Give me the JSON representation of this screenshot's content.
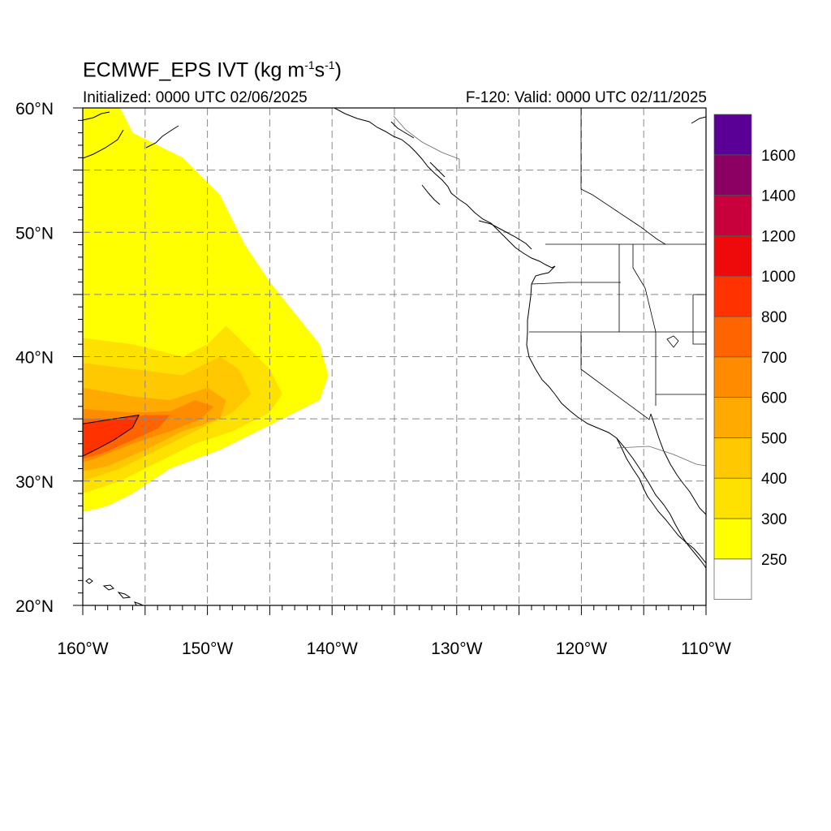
{
  "header": {
    "title_main": "ECMWF_EPS IVT (kg m",
    "title_exp1": "-1",
    "title_mid": "s",
    "title_exp2": "-1",
    "title_end": ")",
    "init_text": "Initialized: 0000 UTC 02/06/2025",
    "valid_text": "F-120: Valid: 0000 UTC 02/11/2025"
  },
  "map": {
    "lon_range": [
      -160,
      -110
    ],
    "lat_range": [
      20,
      60
    ],
    "lon_ticks": [
      {
        "value": -160,
        "label": "160°W"
      },
      {
        "value": -150,
        "label": "150°W"
      },
      {
        "value": -140,
        "label": "140°W"
      },
      {
        "value": -130,
        "label": "130°W"
      },
      {
        "value": -120,
        "label": "120°W"
      },
      {
        "value": -110,
        "label": "110°W"
      }
    ],
    "lat_ticks": [
      {
        "value": 20,
        "label": "20°N"
      },
      {
        "value": 30,
        "label": "30°N"
      },
      {
        "value": 40,
        "label": "40°N"
      },
      {
        "value": 50,
        "label": "50°N"
      },
      {
        "value": 60,
        "label": "60°N"
      }
    ],
    "grid_lons": [
      -155,
      -150,
      -145,
      -140,
      -135,
      -130,
      -125,
      -120,
      -115
    ],
    "grid_lats": [
      25,
      30,
      35,
      40,
      45,
      50,
      55
    ],
    "grid": "dashed"
  },
  "colorbar": {
    "levels": [
      250,
      300,
      400,
      500,
      600,
      700,
      800,
      1000,
      1200,
      1400,
      1600
    ],
    "colors": [
      "#ffffff",
      "#ffff00",
      "#ffe100",
      "#ffc800",
      "#ffaa00",
      "#ff8c00",
      "#ff6400",
      "#ff3200",
      "#ee0a0a",
      "#c8003c",
      "#8c0064",
      "#5a0096"
    ]
  },
  "ivt_field": {
    "units": "kg m-1 s-1",
    "contour_level": 800,
    "description_bands": [
      {
        "level_min": 250,
        "outline": [
          [
            -160,
            60
          ],
          [
            -157,
            60
          ],
          [
            -156,
            58
          ],
          [
            -152,
            56
          ],
          [
            -149,
            53
          ],
          [
            -147,
            49
          ],
          [
            -145,
            46
          ],
          [
            -143,
            43.5
          ],
          [
            -141,
            41
          ],
          [
            -140.3,
            38.5
          ],
          [
            -141,
            36.5
          ],
          [
            -143,
            35.5
          ],
          [
            -146,
            34
          ],
          [
            -149,
            32.5
          ],
          [
            -153,
            31
          ],
          [
            -156,
            29
          ],
          [
            -158,
            28
          ],
          [
            -160,
            27.5
          ]
        ]
      },
      {
        "level_min": 300,
        "outline": [
          [
            -160,
            41.5
          ],
          [
            -156,
            41
          ],
          [
            -152,
            40
          ],
          [
            -150,
            41
          ],
          [
            -148.5,
            42.5
          ],
          [
            -147,
            41
          ],
          [
            -145,
            39
          ],
          [
            -144,
            37
          ],
          [
            -145,
            35.5
          ],
          [
            -148,
            34
          ],
          [
            -151,
            33
          ],
          [
            -154,
            31.5
          ],
          [
            -157,
            30
          ],
          [
            -160,
            29
          ]
        ]
      },
      {
        "level_min": 400,
        "outline": [
          [
            -160,
            39.5
          ],
          [
            -156,
            39
          ],
          [
            -152,
            38.5
          ],
          [
            -149,
            40
          ],
          [
            -147.5,
            39
          ],
          [
            -146.5,
            37
          ],
          [
            -148,
            35.5
          ],
          [
            -151,
            34
          ],
          [
            -154,
            32.5
          ],
          [
            -157,
            31
          ],
          [
            -160,
            30
          ]
        ]
      },
      {
        "level_min": 500,
        "outline": [
          [
            -160,
            37.5
          ],
          [
            -156,
            36.8
          ],
          [
            -153,
            36.5
          ],
          [
            -150,
            37.5
          ],
          [
            -148.5,
            36.5
          ],
          [
            -149,
            35
          ],
          [
            -152,
            34
          ],
          [
            -155,
            32.5
          ],
          [
            -158,
            31.2
          ],
          [
            -160,
            30.8
          ]
        ]
      },
      {
        "level_min": 600,
        "outline": [
          [
            -160,
            35.8
          ],
          [
            -156,
            35.5
          ],
          [
            -153,
            35.6
          ],
          [
            -151,
            36.5
          ],
          [
            -149.5,
            36
          ],
          [
            -150.5,
            35
          ],
          [
            -153,
            34
          ],
          [
            -156,
            33
          ],
          [
            -159,
            31.8
          ],
          [
            -160,
            31.5
          ]
        ]
      },
      {
        "level_min": 700,
        "outline": [
          [
            -160,
            35
          ],
          [
            -157,
            35
          ],
          [
            -155,
            35.3
          ],
          [
            -153,
            35.3
          ],
          [
            -154,
            34.2
          ],
          [
            -156,
            33.3
          ],
          [
            -158.5,
            32.2
          ],
          [
            -160,
            31.8
          ]
        ]
      },
      {
        "level_min": 800,
        "outline": [
          [
            -160,
            34.6
          ],
          [
            -157.5,
            35
          ],
          [
            -155.5,
            35.3
          ],
          [
            -156,
            34.3
          ],
          [
            -157.5,
            33.3
          ],
          [
            -159,
            32.5
          ],
          [
            -160,
            32
          ]
        ]
      }
    ]
  }
}
